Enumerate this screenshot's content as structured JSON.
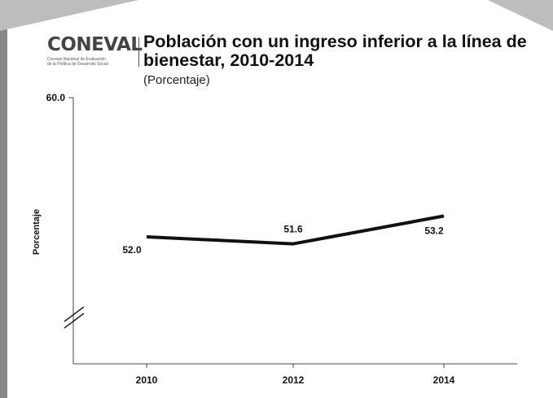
{
  "logo": {
    "word": "CONEVAL",
    "subtitle_line1": "Consejo Nacional de Evaluación",
    "subtitle_line2": "de la Política de Desarrollo Social"
  },
  "chart_data": {
    "type": "line",
    "title": "Población con un ingreso inferior a la línea de bienestar, 2010-2014",
    "subtitle": "(Porcentaje)",
    "xlabel": "",
    "ylabel": "Porcentaje",
    "categories": [
      "2010",
      "2012",
      "2014"
    ],
    "series": [
      {
        "values": [
          52.0,
          51.6,
          53.2
        ]
      }
    ],
    "data_labels": [
      "52.0",
      "51.6",
      "53.2"
    ],
    "ylim_top": 60.0,
    "y_ticks": [
      "60.0"
    ],
    "axis_break": true,
    "grid": false,
    "legend": "none",
    "line_color": "#111111"
  }
}
